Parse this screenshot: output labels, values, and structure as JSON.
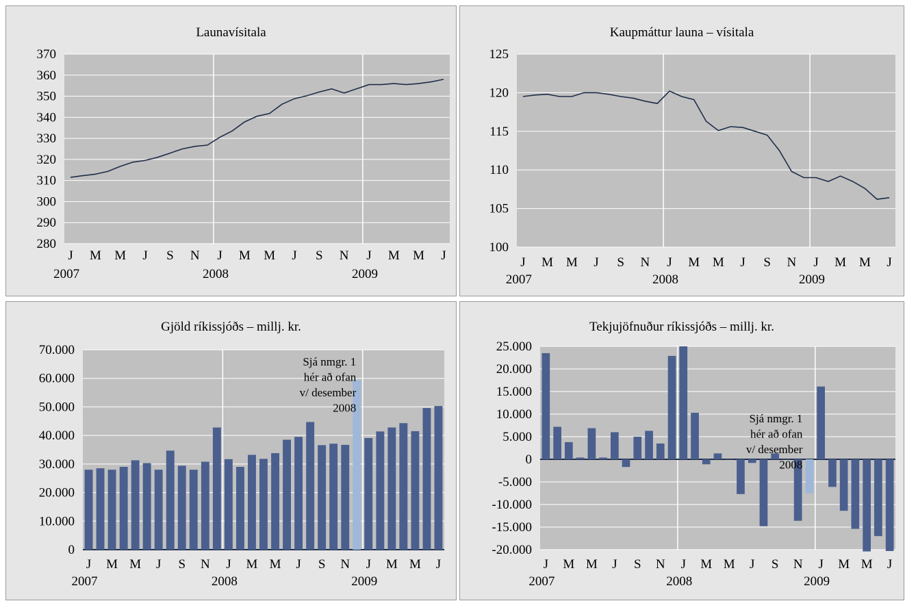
{
  "charts_common": {
    "month_letters": [
      "J",
      "M",
      "M",
      "J",
      "S",
      "N",
      "J",
      "M",
      "M",
      "J",
      "S",
      "N",
      "J",
      "M",
      "M",
      "J"
    ],
    "years": [
      "2007",
      "2008",
      "2009"
    ]
  },
  "chart_data": [
    {
      "type": "line",
      "title": "Launavísitala",
      "ylim": [
        280,
        370
      ],
      "yticks": [
        "280",
        "290",
        "300",
        "310",
        "320",
        "330",
        "340",
        "350",
        "360",
        "370"
      ],
      "grid": true,
      "series": [
        {
          "values": [
            311.5,
            312.3,
            313.0,
            314.3,
            316.7,
            318.7,
            319.5,
            321.0,
            323.0,
            325.0,
            326.2,
            326.8,
            330.5,
            333.5,
            337.8,
            340.5,
            341.8,
            346.2,
            348.8,
            350.2,
            352.0,
            353.5,
            351.5,
            353.5,
            355.5,
            355.5,
            356.0,
            355.5,
            356.0,
            356.8,
            358.0
          ]
        }
      ],
      "color": "#1f2d4a"
    },
    {
      "type": "line",
      "title": "Kaupmáttur launa – vísitala",
      "ylim": [
        100,
        125
      ],
      "yticks": [
        "100",
        "105",
        "110",
        "115",
        "120",
        "125"
      ],
      "grid": true,
      "series": [
        {
          "values": [
            119.5,
            119.7,
            119.8,
            119.5,
            119.5,
            120.0,
            120.0,
            119.8,
            119.5,
            119.3,
            118.9,
            118.6,
            120.2,
            119.5,
            119.1,
            116.3,
            115.1,
            115.6,
            115.5,
            115.0,
            114.5,
            112.5,
            109.8,
            109.0,
            109.0,
            108.5,
            109.2,
            108.5,
            107.6,
            106.2,
            106.4
          ]
        }
      ],
      "color": "#1f2d4a"
    },
    {
      "type": "bar",
      "title": "Gjöld ríkissjóðs – millj. kr.",
      "ylim": [
        0,
        70000
      ],
      "yticks": [
        "0",
        "10.000",
        "20.000",
        "30.000",
        "40.000",
        "50.000",
        "60.000",
        "70.000"
      ],
      "grid": true,
      "values": [
        28000,
        28500,
        28000,
        29000,
        31300,
        30300,
        28000,
        34700,
        29400,
        28000,
        30800,
        42800,
        31700,
        29000,
        33200,
        31800,
        33800,
        38500,
        39500,
        44700,
        36600,
        37100,
        36700,
        59300,
        39100,
        41400,
        42800,
        44300,
        41500,
        49600,
        50300
      ],
      "highlight_index": 23,
      "colors": {
        "bar": "#4a5f8e",
        "highlight": "#9fb8d9"
      },
      "annotation": [
        "Sjá nmgr. 1",
        "hér að ofan",
        "v/ desember",
        "2008"
      ]
    },
    {
      "type": "bar",
      "title": "Tekjujöfnuður ríkissjóðs – millj. kr.",
      "ylim": [
        -20000,
        25000
      ],
      "yticks": [
        "-20.000",
        "-15.000",
        "-10.000",
        "-5.000",
        "0",
        "5.000",
        "10.000",
        "15.000",
        "20.000",
        "25.000"
      ],
      "grid": true,
      "values": [
        23500,
        7200,
        3800,
        400,
        6900,
        400,
        6000,
        -1700,
        5000,
        6300,
        3500,
        22900,
        25000,
        10300,
        -1100,
        1300,
        0,
        -7700,
        -800,
        -14800,
        1300,
        0,
        -13600,
        -7500,
        16100,
        -6100,
        -11400,
        -15400,
        -20400,
        -17000,
        -20300
      ],
      "highlight_index": 23,
      "colors": {
        "bar": "#4a5f8e",
        "highlight": "#9fb8d9"
      },
      "annotation": [
        "Sjá nmgr. 1",
        "hér að ofan",
        "v/ desember",
        "2008"
      ]
    }
  ]
}
